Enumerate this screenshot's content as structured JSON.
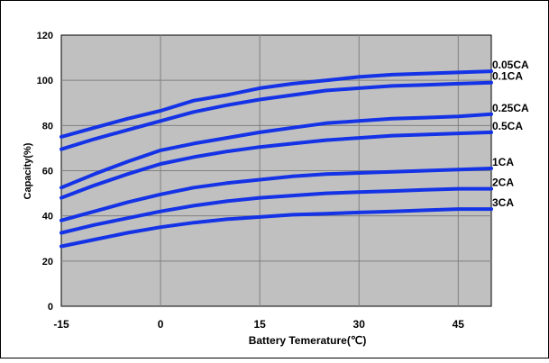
{
  "chart_data": {
    "type": "line",
    "title": "",
    "xlabel": "Battery Temerature(℃)",
    "ylabel": "Capacity(%)",
    "xlim": [
      -15,
      50
    ],
    "ylim": [
      0,
      120
    ],
    "xticks": [
      -15,
      0,
      15,
      30,
      45
    ],
    "yticks": [
      0,
      20,
      40,
      60,
      80,
      100,
      120
    ],
    "grid": true,
    "legend": "inline-right",
    "colors": {
      "line": "#1432e6",
      "plot_bg": "#c0c0c0",
      "grid": "#808080",
      "border": "#000000"
    },
    "series": [
      {
        "name": "0.05CA",
        "points": [
          [
            -15,
            75
          ],
          [
            -10,
            79
          ],
          [
            -5,
            83
          ],
          [
            0,
            86.5
          ],
          [
            5,
            91
          ],
          [
            10,
            93.5
          ],
          [
            15,
            96.5
          ],
          [
            20,
            98.5
          ],
          [
            25,
            100
          ],
          [
            30,
            101.5
          ],
          [
            35,
            102.5
          ],
          [
            40,
            103
          ],
          [
            45,
            103.5
          ],
          [
            50,
            104
          ]
        ]
      },
      {
        "name": "0.1CA",
        "points": [
          [
            -15,
            69.5
          ],
          [
            -10,
            74
          ],
          [
            -5,
            78
          ],
          [
            0,
            82
          ],
          [
            5,
            86
          ],
          [
            10,
            89
          ],
          [
            15,
            91.5
          ],
          [
            20,
            93.5
          ],
          [
            25,
            95.5
          ],
          [
            30,
            96.5
          ],
          [
            35,
            97.5
          ],
          [
            40,
            98
          ],
          [
            45,
            98.5
          ],
          [
            50,
            99
          ]
        ]
      },
      {
        "name": "0.25CA",
        "points": [
          [
            -15,
            52.5
          ],
          [
            -10,
            58.5
          ],
          [
            -5,
            64
          ],
          [
            0,
            69
          ],
          [
            5,
            72
          ],
          [
            10,
            74.5
          ],
          [
            15,
            77
          ],
          [
            20,
            79
          ],
          [
            25,
            81
          ],
          [
            30,
            82
          ],
          [
            35,
            83
          ],
          [
            40,
            83.5
          ],
          [
            45,
            84
          ],
          [
            50,
            85
          ]
        ]
      },
      {
        "name": "0.5CA",
        "points": [
          [
            -15,
            48
          ],
          [
            -10,
            53.5
          ],
          [
            -5,
            58.5
          ],
          [
            0,
            63
          ],
          [
            5,
            66
          ],
          [
            10,
            68.5
          ],
          [
            15,
            70.5
          ],
          [
            20,
            72
          ],
          [
            25,
            73.5
          ],
          [
            30,
            74.5
          ],
          [
            35,
            75.5
          ],
          [
            40,
            76
          ],
          [
            45,
            76.5
          ],
          [
            50,
            77
          ]
        ]
      },
      {
        "name": "1CA",
        "points": [
          [
            -15,
            38
          ],
          [
            -10,
            42
          ],
          [
            -5,
            46
          ],
          [
            0,
            49.5
          ],
          [
            5,
            52.5
          ],
          [
            10,
            54.5
          ],
          [
            15,
            56
          ],
          [
            20,
            57.5
          ],
          [
            25,
            58.5
          ],
          [
            30,
            59
          ],
          [
            35,
            59.5
          ],
          [
            40,
            60
          ],
          [
            45,
            60.5
          ],
          [
            50,
            61
          ]
        ]
      },
      {
        "name": "2CA",
        "points": [
          [
            -15,
            32.5
          ],
          [
            -10,
            36
          ],
          [
            -5,
            39
          ],
          [
            0,
            42
          ],
          [
            5,
            44.5
          ],
          [
            10,
            46.5
          ],
          [
            15,
            48
          ],
          [
            20,
            49
          ],
          [
            25,
            50
          ],
          [
            30,
            50.5
          ],
          [
            35,
            51
          ],
          [
            40,
            51.5
          ],
          [
            45,
            52
          ],
          [
            50,
            52
          ]
        ]
      },
      {
        "name": "3CA",
        "points": [
          [
            -15,
            26.5
          ],
          [
            -10,
            29.5
          ],
          [
            -5,
            32.5
          ],
          [
            0,
            35
          ],
          [
            5,
            37
          ],
          [
            10,
            38.5
          ],
          [
            15,
            39.5
          ],
          [
            20,
            40.5
          ],
          [
            25,
            41
          ],
          [
            30,
            41.5
          ],
          [
            35,
            42
          ],
          [
            40,
            42.5
          ],
          [
            45,
            43
          ],
          [
            50,
            43
          ]
        ]
      }
    ]
  }
}
